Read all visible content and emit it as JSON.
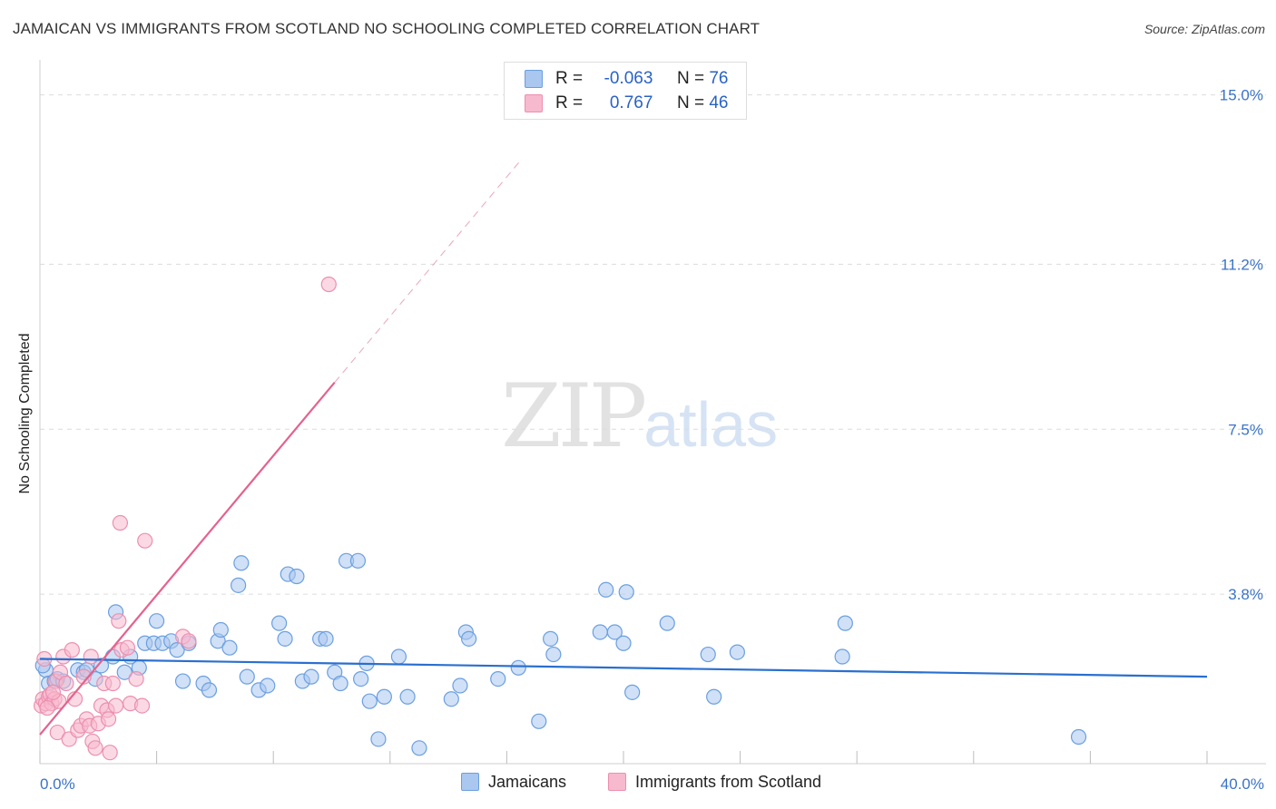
{
  "title": "JAMAICAN VS IMMIGRANTS FROM SCOTLAND NO SCHOOLING COMPLETED CORRELATION CHART",
  "source": "Source: ZipAtlas.com",
  "watermark": {
    "zip": "ZIP",
    "atlas": "atlas"
  },
  "legend": {
    "r_label": "R =",
    "n_label": "N =",
    "rows": [
      {
        "r": "-0.063",
        "n": "76",
        "color": "#a9c7ef"
      },
      {
        "r": "0.767",
        "n": "46",
        "color": "#f7b9cd"
      }
    ]
  },
  "bottom_legend": [
    "Jamaicans",
    "Immigrants from Scotland"
  ],
  "colors": {
    "blue_fill": "#a9c7ef",
    "blue_stroke": "#6a9fe0",
    "blue_line": "#2a6fcf",
    "pink_fill": "#f7b9cd",
    "pink_stroke": "#ec8fae",
    "pink_line": "#e5628c",
    "axis_label": "#3a73c9",
    "grid": "#dcdcdc"
  },
  "chart_data": {
    "type": "scatter",
    "title": "JAMAICAN VS IMMIGRANTS FROM SCOTLAND NO SCHOOLING COMPLETED CORRELATION CHART",
    "xlabel": "",
    "ylabel": "No Schooling Completed",
    "xlim": [
      0,
      40
    ],
    "ylim": [
      0,
      15.5
    ],
    "y_ticks": [
      3.8,
      7.5,
      11.2,
      15.0
    ],
    "y_tick_labels": [
      "3.8%",
      "7.5%",
      "11.2%",
      "15.0%"
    ],
    "x_tick_labels": [
      "0.0%",
      "40.0%"
    ],
    "series": [
      {
        "name": "Jamaicans",
        "r": -0.063,
        "n": 76,
        "trend": {
          "x": [
            0,
            40
          ],
          "y": [
            2.35,
            1.95
          ]
        },
        "points": [
          [
            0.2,
            2.1
          ],
          [
            0.3,
            1.8
          ],
          [
            0.5,
            1.85
          ],
          [
            0.6,
            1.9
          ],
          [
            0.8,
            1.85
          ],
          [
            1.3,
            2.1
          ],
          [
            1.5,
            2.05
          ],
          [
            1.6,
            2.1
          ],
          [
            1.9,
            1.9
          ],
          [
            2.1,
            2.2
          ],
          [
            2.5,
            2.4
          ],
          [
            2.6,
            3.4
          ],
          [
            2.9,
            2.05
          ],
          [
            3.1,
            2.4
          ],
          [
            3.4,
            2.15
          ],
          [
            3.6,
            2.7
          ],
          [
            3.9,
            2.7
          ],
          [
            4.0,
            3.2
          ],
          [
            4.2,
            2.7
          ],
          [
            4.5,
            2.75
          ],
          [
            4.7,
            2.55
          ],
          [
            4.9,
            1.85
          ],
          [
            5.1,
            2.7
          ],
          [
            5.6,
            1.8
          ],
          [
            5.8,
            1.65
          ],
          [
            6.1,
            2.75
          ],
          [
            6.2,
            3.0
          ],
          [
            6.5,
            2.6
          ],
          [
            6.8,
            4.0
          ],
          [
            6.9,
            4.5
          ],
          [
            7.1,
            1.95
          ],
          [
            7.5,
            1.65
          ],
          [
            7.8,
            1.75
          ],
          [
            8.2,
            3.15
          ],
          [
            8.4,
            2.8
          ],
          [
            8.5,
            4.25
          ],
          [
            8.8,
            4.2
          ],
          [
            9.0,
            1.85
          ],
          [
            9.3,
            1.95
          ],
          [
            9.6,
            2.8
          ],
          [
            9.8,
            2.8
          ],
          [
            10.1,
            2.05
          ],
          [
            10.3,
            1.8
          ],
          [
            10.5,
            4.55
          ],
          [
            10.9,
            4.55
          ],
          [
            11.0,
            1.9
          ],
          [
            11.2,
            2.25
          ],
          [
            11.3,
            1.4
          ],
          [
            11.6,
            0.55
          ],
          [
            11.8,
            1.5
          ],
          [
            12.3,
            2.4
          ],
          [
            12.6,
            1.5
          ],
          [
            13.0,
            0.35
          ],
          [
            14.1,
            1.45
          ],
          [
            14.4,
            1.75
          ],
          [
            14.6,
            2.95
          ],
          [
            14.7,
            2.8
          ],
          [
            15.7,
            1.9
          ],
          [
            16.4,
            2.15
          ],
          [
            17.1,
            0.95
          ],
          [
            17.5,
            2.8
          ],
          [
            17.6,
            2.45
          ],
          [
            19.2,
            2.95
          ],
          [
            19.4,
            3.9
          ],
          [
            19.7,
            2.95
          ],
          [
            20.0,
            2.7
          ],
          [
            20.1,
            3.85
          ],
          [
            20.3,
            1.6
          ],
          [
            21.5,
            3.15
          ],
          [
            22.9,
            2.45
          ],
          [
            23.1,
            1.5
          ],
          [
            23.9,
            2.5
          ],
          [
            27.5,
            2.4
          ],
          [
            27.6,
            3.15
          ],
          [
            35.6,
            0.6
          ],
          [
            0.1,
            2.2
          ]
        ]
      },
      {
        "name": "Immigrants from Scotland",
        "r": 0.767,
        "n": 46,
        "trend": {
          "x": [
            0,
            10.1
          ],
          "y": [
            0.65,
            8.55
          ]
        },
        "trend_dashed": {
          "x": [
            10.1,
            16.5
          ],
          "y": [
            8.55,
            13.55
          ]
        },
        "points": [
          [
            0.05,
            1.3
          ],
          [
            0.1,
            1.45
          ],
          [
            0.15,
            2.35
          ],
          [
            0.2,
            1.35
          ],
          [
            0.3,
            1.5
          ],
          [
            0.35,
            1.55
          ],
          [
            0.4,
            1.35
          ],
          [
            0.5,
            1.45
          ],
          [
            0.55,
            1.85
          ],
          [
            0.6,
            0.7
          ],
          [
            0.65,
            1.4
          ],
          [
            0.7,
            2.05
          ],
          [
            0.8,
            2.4
          ],
          [
            0.9,
            1.8
          ],
          [
            1.0,
            0.55
          ],
          [
            1.1,
            2.55
          ],
          [
            1.2,
            1.45
          ],
          [
            1.3,
            0.75
          ],
          [
            1.4,
            0.85
          ],
          [
            1.5,
            1.95
          ],
          [
            1.6,
            1.0
          ],
          [
            1.7,
            0.85
          ],
          [
            1.75,
            2.4
          ],
          [
            1.8,
            0.5
          ],
          [
            1.9,
            0.35
          ],
          [
            2.0,
            0.9
          ],
          [
            2.1,
            1.3
          ],
          [
            2.2,
            1.8
          ],
          [
            2.3,
            1.2
          ],
          [
            2.35,
            1.0
          ],
          [
            2.4,
            0.25
          ],
          [
            2.5,
            1.8
          ],
          [
            2.6,
            1.3
          ],
          [
            2.7,
            3.2
          ],
          [
            2.75,
            5.4
          ],
          [
            2.8,
            2.55
          ],
          [
            3.0,
            2.6
          ],
          [
            3.1,
            1.35
          ],
          [
            3.3,
            1.9
          ],
          [
            3.5,
            1.3
          ],
          [
            3.6,
            5.0
          ],
          [
            4.9,
            2.85
          ],
          [
            5.1,
            2.75
          ],
          [
            9.9,
            10.75
          ],
          [
            0.25,
            1.25
          ],
          [
            0.45,
            1.6
          ]
        ]
      }
    ]
  }
}
